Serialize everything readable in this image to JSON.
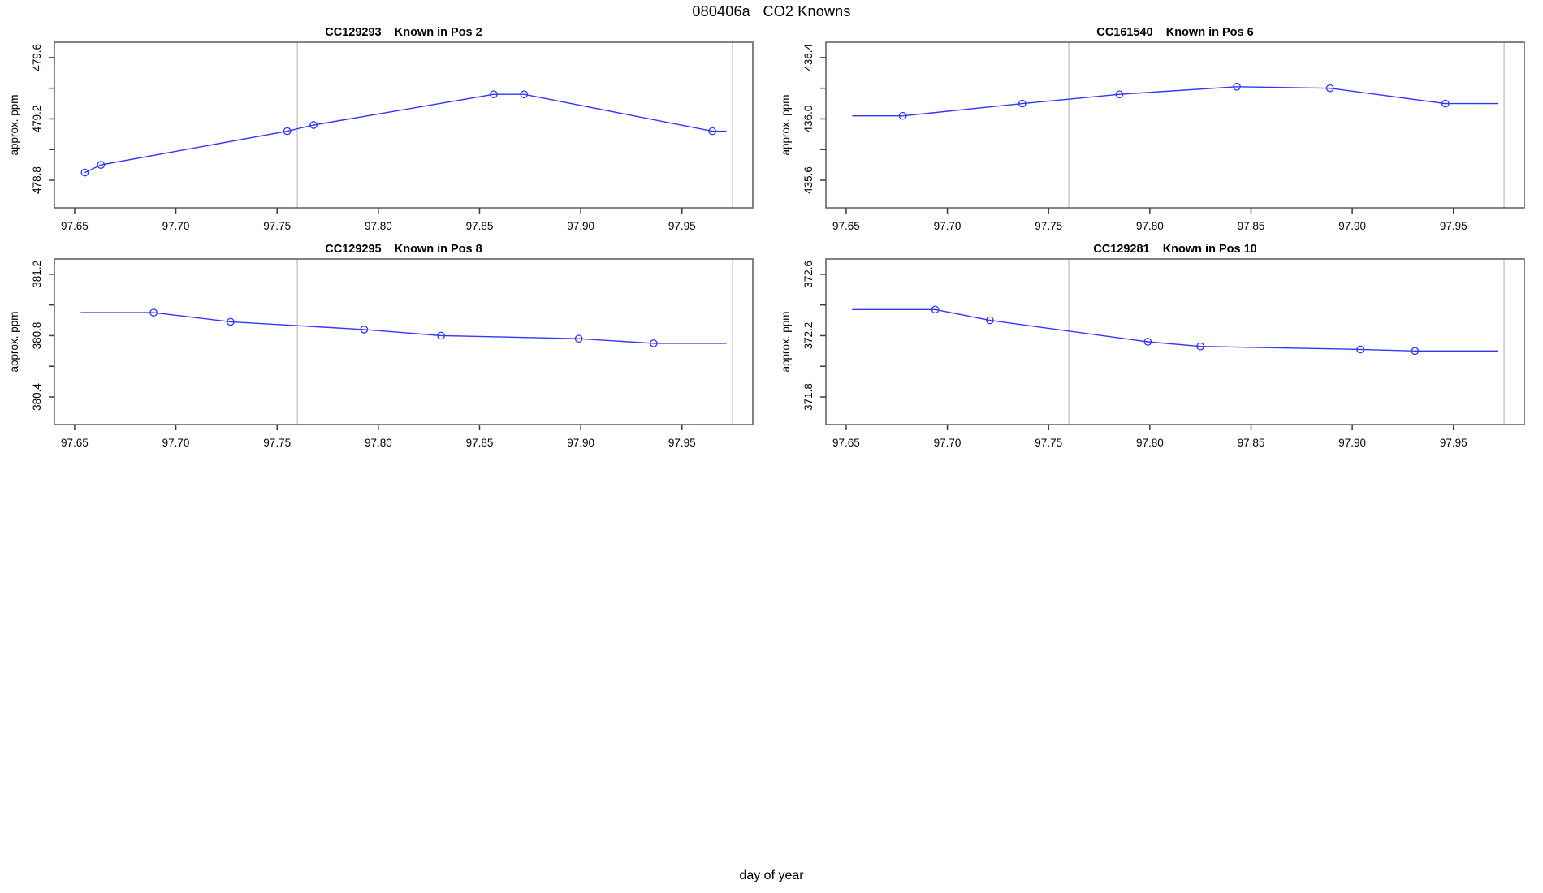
{
  "title": "080406a   CO2 Knowns",
  "xlabel": "day of year",
  "colors": {
    "series_line": "#3434ff",
    "marker_stroke": "#3434ff",
    "frame": "#5a5a5a",
    "tick": "#3a3a3a",
    "vline": "#c9c9c9",
    "text": "#000000"
  },
  "chart_data": [
    {
      "type": "line",
      "title": "CC129293    Known in Pos 2",
      "station": "CC129293",
      "position_label": "Known in Pos 2",
      "ylabel": "approx. ppm",
      "xlim": [
        97.64,
        97.985
      ],
      "ylim": [
        478.62,
        479.7
      ],
      "x_ticks": [
        97.65,
        97.7,
        97.75,
        97.8,
        97.85,
        97.9,
        97.95
      ],
      "x_tick_labels": [
        "97.65",
        "97.70",
        "97.75",
        "97.80",
        "97.85",
        "97.90",
        "97.95"
      ],
      "y_ticks": [
        478.8,
        479.0,
        479.2,
        479.4,
        479.6
      ],
      "y_tick_labels": [
        "478.8",
        "",
        "479.2",
        "",
        "479.6"
      ],
      "vlines": [
        97.76,
        97.975
      ],
      "markers": {
        "x": [
          97.655,
          97.663,
          97.755,
          97.768,
          97.857,
          97.872,
          97.965
        ],
        "y": [
          478.85,
          478.9,
          479.12,
          479.16,
          479.36,
          479.36,
          479.12
        ]
      },
      "line": {
        "x": [
          97.655,
          97.663,
          97.755,
          97.768,
          97.857,
          97.872,
          97.965,
          97.972
        ],
        "y": [
          478.85,
          478.9,
          479.12,
          479.16,
          479.36,
          479.36,
          479.12,
          479.12
        ]
      }
    },
    {
      "type": "line",
      "title": "CC161540    Known in Pos 6",
      "station": "CC161540",
      "position_label": "Known in Pos 6",
      "ylabel": "approx. ppm",
      "xlim": [
        97.64,
        97.985
      ],
      "ylim": [
        435.42,
        436.5
      ],
      "x_ticks": [
        97.65,
        97.7,
        97.75,
        97.8,
        97.85,
        97.9,
        97.95
      ],
      "x_tick_labels": [
        "97.65",
        "97.70",
        "97.75",
        "97.80",
        "97.85",
        "97.90",
        "97.95"
      ],
      "y_ticks": [
        435.6,
        435.8,
        436.0,
        436.2,
        436.4
      ],
      "y_tick_labels": [
        "435.6",
        "",
        "436.0",
        "",
        "436.4"
      ],
      "vlines": [
        97.76,
        97.975
      ],
      "markers": {
        "x": [
          97.678,
          97.737,
          97.785,
          97.843,
          97.889,
          97.946
        ],
        "y": [
          436.02,
          436.1,
          436.16,
          436.21,
          436.2,
          436.1
        ]
      },
      "line": {
        "x": [
          97.653,
          97.678,
          97.737,
          97.785,
          97.843,
          97.889,
          97.946,
          97.972
        ],
        "y": [
          436.02,
          436.02,
          436.1,
          436.16,
          436.21,
          436.2,
          436.1,
          436.1
        ]
      }
    },
    {
      "type": "line",
      "title": "CC129295    Known in Pos 8",
      "station": "CC129295",
      "position_label": "Known in Pos 8",
      "ylabel": "approx. ppm",
      "xlim": [
        97.64,
        97.985
      ],
      "ylim": [
        380.22,
        381.3
      ],
      "x_ticks": [
        97.65,
        97.7,
        97.75,
        97.8,
        97.85,
        97.9,
        97.95
      ],
      "x_tick_labels": [
        "97.65",
        "97.70",
        "97.75",
        "97.80",
        "97.85",
        "97.90",
        "97.95"
      ],
      "y_ticks": [
        380.4,
        380.6,
        380.8,
        381.0,
        381.2
      ],
      "y_tick_labels": [
        "380.4",
        "",
        "380.8",
        "",
        "381.2"
      ],
      "vlines": [
        97.76,
        97.975
      ],
      "markers": {
        "x": [
          97.689,
          97.727,
          97.793,
          97.831,
          97.899,
          97.936
        ],
        "y": [
          380.95,
          380.89,
          380.84,
          380.8,
          380.78,
          380.75
        ]
      },
      "line": {
        "x": [
          97.653,
          97.689,
          97.727,
          97.793,
          97.831,
          97.899,
          97.936,
          97.972
        ],
        "y": [
          380.95,
          380.95,
          380.89,
          380.84,
          380.8,
          380.78,
          380.75,
          380.75
        ]
      }
    },
    {
      "type": "line",
      "title": "CC129281    Known in Pos 10",
      "station": "CC129281",
      "position_label": "Known in Pos 10",
      "ylabel": "approx. ppm",
      "xlim": [
        97.64,
        97.985
      ],
      "ylim": [
        371.62,
        372.7
      ],
      "x_ticks": [
        97.65,
        97.7,
        97.75,
        97.8,
        97.85,
        97.9,
        97.95
      ],
      "x_tick_labels": [
        "97.65",
        "97.70",
        "97.75",
        "97.80",
        "97.85",
        "97.90",
        "97.95"
      ],
      "y_ticks": [
        371.8,
        372.0,
        372.2,
        372.4,
        372.6
      ],
      "y_tick_labels": [
        "371.8",
        "",
        "372.2",
        "",
        "372.6"
      ],
      "vlines": [
        97.76,
        97.975
      ],
      "markers": {
        "x": [
          97.694,
          97.721,
          97.799,
          97.825,
          97.904,
          97.931
        ],
        "y": [
          372.37,
          372.3,
          372.16,
          372.13,
          372.11,
          372.1
        ]
      },
      "line": {
        "x": [
          97.653,
          97.694,
          97.721,
          97.799,
          97.825,
          97.904,
          97.931,
          97.972
        ],
        "y": [
          372.37,
          372.37,
          372.3,
          372.16,
          372.13,
          372.11,
          372.1,
          372.1
        ]
      }
    }
  ]
}
